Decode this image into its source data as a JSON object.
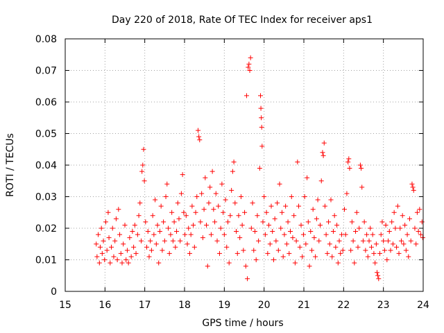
{
  "chart_data": {
    "type": "scatter",
    "title": "Day 220 of 2018, Rate Of TEC Index for receiver aps1",
    "xlabel": "GPS time / hours",
    "ylabel": "ROTI / TECUs",
    "xlim": [
      15,
      24
    ],
    "ylim": [
      0,
      0.08
    ],
    "x_ticks": [
      "15",
      "16",
      "17",
      "18",
      "19",
      "20",
      "21",
      "22",
      "23",
      "24"
    ],
    "y_ticks": [
      "0",
      "0.01",
      "0.02",
      "0.03",
      "0.04",
      "0.05",
      "0.06",
      "0.07",
      "0.08"
    ],
    "grid": true,
    "legend": "none",
    "marker": "+",
    "point_color": "#ff0000",
    "points": [
      [
        15.78,
        0.015
      ],
      [
        15.8,
        0.011
      ],
      [
        15.83,
        0.018
      ],
      [
        15.86,
        0.009
      ],
      [
        15.88,
        0.014
      ],
      [
        15.91,
        0.02
      ],
      [
        15.93,
        0.012
      ],
      [
        15.96,
        0.016
      ],
      [
        15.99,
        0.01
      ],
      [
        16.02,
        0.022
      ],
      [
        16.05,
        0.013
      ],
      [
        16.08,
        0.025
      ],
      [
        16.1,
        0.017
      ],
      [
        16.13,
        0.009
      ],
      [
        16.16,
        0.014
      ],
      [
        16.19,
        0.02
      ],
      [
        16.22,
        0.011
      ],
      [
        16.25,
        0.016
      ],
      [
        16.28,
        0.023
      ],
      [
        16.31,
        0.01
      ],
      [
        16.34,
        0.026
      ],
      [
        16.37,
        0.018
      ],
      [
        16.4,
        0.012
      ],
      [
        16.43,
        0.009
      ],
      [
        16.46,
        0.015
      ],
      [
        16.5,
        0.021
      ],
      [
        16.53,
        0.01
      ],
      [
        16.56,
        0.013
      ],
      [
        16.59,
        0.009
      ],
      [
        16.62,
        0.017
      ],
      [
        16.66,
        0.011
      ],
      [
        16.69,
        0.019
      ],
      [
        16.72,
        0.014
      ],
      [
        16.75,
        0.021
      ],
      [
        16.78,
        0.012
      ],
      [
        16.82,
        0.018
      ],
      [
        16.85,
        0.024
      ],
      [
        16.88,
        0.028
      ],
      [
        16.91,
        0.016
      ],
      [
        16.93,
        0.038
      ],
      [
        16.95,
        0.04
      ],
      [
        16.97,
        0.045
      ],
      [
        16.99,
        0.035
      ],
      [
        17.02,
        0.022
      ],
      [
        17.05,
        0.014
      ],
      [
        17.08,
        0.019
      ],
      [
        17.11,
        0.011
      ],
      [
        17.14,
        0.016
      ],
      [
        17.17,
        0.013
      ],
      [
        17.2,
        0.024
      ],
      [
        17.23,
        0.018
      ],
      [
        17.26,
        0.029
      ],
      [
        17.29,
        0.015
      ],
      [
        17.32,
        0.021
      ],
      [
        17.35,
        0.009
      ],
      [
        17.38,
        0.019
      ],
      [
        17.41,
        0.027
      ],
      [
        17.44,
        0.013
      ],
      [
        17.47,
        0.022
      ],
      [
        17.5,
        0.016
      ],
      [
        17.53,
        0.03
      ],
      [
        17.56,
        0.034
      ],
      [
        17.59,
        0.02
      ],
      [
        17.62,
        0.012
      ],
      [
        17.65,
        0.018
      ],
      [
        17.68,
        0.025
      ],
      [
        17.71,
        0.016
      ],
      [
        17.74,
        0.022
      ],
      [
        17.77,
        0.014
      ],
      [
        17.8,
        0.019
      ],
      [
        17.83,
        0.028
      ],
      [
        17.86,
        0.023
      ],
      [
        17.89,
        0.016
      ],
      [
        17.92,
        0.031
      ],
      [
        17.95,
        0.037
      ],
      [
        17.98,
        0.025
      ],
      [
        18.01,
        0.018
      ],
      [
        18.04,
        0.024
      ],
      [
        18.07,
        0.015
      ],
      [
        18.1,
        0.02
      ],
      [
        18.13,
        0.012
      ],
      [
        18.16,
        0.018
      ],
      [
        18.19,
        0.027
      ],
      [
        18.22,
        0.021
      ],
      [
        18.25,
        0.014
      ],
      [
        18.28,
        0.025
      ],
      [
        18.31,
        0.03
      ],
      [
        18.34,
        0.051
      ],
      [
        18.36,
        0.049
      ],
      [
        18.38,
        0.048
      ],
      [
        18.4,
        0.022
      ],
      [
        18.43,
        0.031
      ],
      [
        18.46,
        0.017
      ],
      [
        18.49,
        0.026
      ],
      [
        18.52,
        0.036
      ],
      [
        18.55,
        0.021
      ],
      [
        18.58,
        0.008
      ],
      [
        18.61,
        0.028
      ],
      [
        18.64,
        0.033
      ],
      [
        18.67,
        0.018
      ],
      [
        18.7,
        0.038
      ],
      [
        18.73,
        0.026
      ],
      [
        18.76,
        0.022
      ],
      [
        18.79,
        0.031
      ],
      [
        18.82,
        0.016
      ],
      [
        18.85,
        0.027
      ],
      [
        18.88,
        0.012
      ],
      [
        18.91,
        0.02
      ],
      [
        18.94,
        0.034
      ],
      [
        18.97,
        0.025
      ],
      [
        19.0,
        0.018
      ],
      [
        19.03,
        0.029
      ],
      [
        19.06,
        0.014
      ],
      [
        19.09,
        0.022
      ],
      [
        19.12,
        0.009
      ],
      [
        19.15,
        0.024
      ],
      [
        19.18,
        0.032
      ],
      [
        19.21,
        0.038
      ],
      [
        19.24,
        0.041
      ],
      [
        19.27,
        0.028
      ],
      [
        19.3,
        0.019
      ],
      [
        19.33,
        0.012
      ],
      [
        19.36,
        0.024
      ],
      [
        19.39,
        0.017
      ],
      [
        19.42,
        0.03
      ],
      [
        19.45,
        0.021
      ],
      [
        19.48,
        0.013
      ],
      [
        19.51,
        0.025
      ],
      [
        19.54,
        0.008
      ],
      [
        19.56,
        0.062
      ],
      [
        19.58,
        0.004
      ],
      [
        19.6,
        0.071
      ],
      [
        19.62,
        0.072
      ],
      [
        19.64,
        0.07
      ],
      [
        19.66,
        0.074
      ],
      [
        19.68,
        0.02
      ],
      [
        19.71,
        0.028
      ],
      [
        19.74,
        0.013
      ],
      [
        19.77,
        0.019
      ],
      [
        19.8,
        0.01
      ],
      [
        19.83,
        0.024
      ],
      [
        19.86,
        0.016
      ],
      [
        19.89,
        0.039
      ],
      [
        19.91,
        0.062
      ],
      [
        19.92,
        0.058
      ],
      [
        19.93,
        0.055
      ],
      [
        19.94,
        0.052
      ],
      [
        19.95,
        0.046
      ],
      [
        19.97,
        0.022
      ],
      [
        20.0,
        0.03
      ],
      [
        20.03,
        0.018
      ],
      [
        20.06,
        0.025
      ],
      [
        20.09,
        0.012
      ],
      [
        20.12,
        0.021
      ],
      [
        20.15,
        0.015
      ],
      [
        20.18,
        0.027
      ],
      [
        20.21,
        0.019
      ],
      [
        20.24,
        0.01
      ],
      [
        20.27,
        0.023
      ],
      [
        20.3,
        0.016
      ],
      [
        20.33,
        0.028
      ],
      [
        20.36,
        0.013
      ],
      [
        20.39,
        0.034
      ],
      [
        20.42,
        0.02
      ],
      [
        20.45,
        0.025
      ],
      [
        20.48,
        0.011
      ],
      [
        20.51,
        0.018
      ],
      [
        20.54,
        0.027
      ],
      [
        20.57,
        0.015
      ],
      [
        20.6,
        0.022
      ],
      [
        20.63,
        0.012
      ],
      [
        20.66,
        0.019
      ],
      [
        20.69,
        0.03
      ],
      [
        20.72,
        0.017
      ],
      [
        20.75,
        0.024
      ],
      [
        20.78,
        0.009
      ],
      [
        20.81,
        0.016
      ],
      [
        20.84,
        0.041
      ],
      [
        20.87,
        0.027
      ],
      [
        20.9,
        0.014
      ],
      [
        20.93,
        0.021
      ],
      [
        20.96,
        0.011
      ],
      [
        20.99,
        0.018
      ],
      [
        21.02,
        0.03
      ],
      [
        21.05,
        0.015
      ],
      [
        21.08,
        0.036
      ],
      [
        21.11,
        0.022
      ],
      [
        21.14,
        0.008
      ],
      [
        21.17,
        0.019
      ],
      [
        21.2,
        0.013
      ],
      [
        21.23,
        0.026
      ],
      [
        21.26,
        0.017
      ],
      [
        21.29,
        0.011
      ],
      [
        21.32,
        0.023
      ],
      [
        21.35,
        0.029
      ],
      [
        21.38,
        0.016
      ],
      [
        21.41,
        0.021
      ],
      [
        21.44,
        0.035
      ],
      [
        21.47,
        0.044
      ],
      [
        21.49,
        0.043
      ],
      [
        21.51,
        0.047
      ],
      [
        21.53,
        0.027
      ],
      [
        21.56,
        0.018
      ],
      [
        21.59,
        0.012
      ],
      [
        21.62,
        0.022
      ],
      [
        21.65,
        0.015
      ],
      [
        21.68,
        0.029
      ],
      [
        21.71,
        0.011
      ],
      [
        21.74,
        0.019
      ],
      [
        21.77,
        0.024
      ],
      [
        21.8,
        0.014
      ],
      [
        21.83,
        0.021
      ],
      [
        21.86,
        0.009
      ],
      [
        21.89,
        0.016
      ],
      [
        21.92,
        0.012
      ],
      [
        21.95,
        0.018
      ],
      [
        21.98,
        0.013
      ],
      [
        22.02,
        0.026
      ],
      [
        22.05,
        0.018
      ],
      [
        22.08,
        0.031
      ],
      [
        22.11,
        0.041
      ],
      [
        22.13,
        0.042
      ],
      [
        22.15,
        0.039
      ],
      [
        22.18,
        0.013
      ],
      [
        22.21,
        0.022
      ],
      [
        22.24,
        0.016
      ],
      [
        22.27,
        0.009
      ],
      [
        22.3,
        0.019
      ],
      [
        22.33,
        0.025
      ],
      [
        22.36,
        0.014
      ],
      [
        22.39,
        0.02
      ],
      [
        22.42,
        0.04
      ],
      [
        22.44,
        0.039
      ],
      [
        22.46,
        0.033
      ],
      [
        22.49,
        0.016
      ],
      [
        22.52,
        0.022
      ],
      [
        22.55,
        0.013
      ],
      [
        22.58,
        0.018
      ],
      [
        22.61,
        0.011
      ],
      [
        22.64,
        0.016
      ],
      [
        22.67,
        0.02
      ],
      [
        22.7,
        0.014
      ],
      [
        22.73,
        0.018
      ],
      [
        22.76,
        0.012
      ],
      [
        22.79,
        0.009
      ],
      [
        22.82,
        0.015
      ],
      [
        22.84,
        0.006
      ],
      [
        22.86,
        0.005
      ],
      [
        22.88,
        0.004
      ],
      [
        22.91,
        0.012
      ],
      [
        22.94,
        0.018
      ],
      [
        22.97,
        0.022
      ],
      [
        23.0,
        0.016
      ],
      [
        23.03,
        0.013
      ],
      [
        23.06,
        0.021
      ],
      [
        23.09,
        0.01
      ],
      [
        23.12,
        0.016
      ],
      [
        23.15,
        0.019
      ],
      [
        23.18,
        0.013
      ],
      [
        23.21,
        0.022
      ],
      [
        23.24,
        0.015
      ],
      [
        23.27,
        0.025
      ],
      [
        23.3,
        0.02
      ],
      [
        23.33,
        0.014
      ],
      [
        23.36,
        0.027
      ],
      [
        23.39,
        0.012
      ],
      [
        23.42,
        0.02
      ],
      [
        23.45,
        0.016
      ],
      [
        23.48,
        0.024
      ],
      [
        23.51,
        0.015
      ],
      [
        23.54,
        0.021
      ],
      [
        23.57,
        0.013
      ],
      [
        23.6,
        0.018
      ],
      [
        23.63,
        0.011
      ],
      [
        23.66,
        0.023
      ],
      [
        23.69,
        0.016
      ],
      [
        23.72,
        0.034
      ],
      [
        23.74,
        0.033
      ],
      [
        23.76,
        0.032
      ],
      [
        23.79,
        0.02
      ],
      [
        23.82,
        0.015
      ],
      [
        23.85,
        0.025
      ],
      [
        23.88,
        0.019
      ],
      [
        23.91,
        0.026
      ],
      [
        23.94,
        0.018
      ],
      [
        23.97,
        0.022
      ],
      [
        23.99,
        0.017
      ]
    ]
  }
}
